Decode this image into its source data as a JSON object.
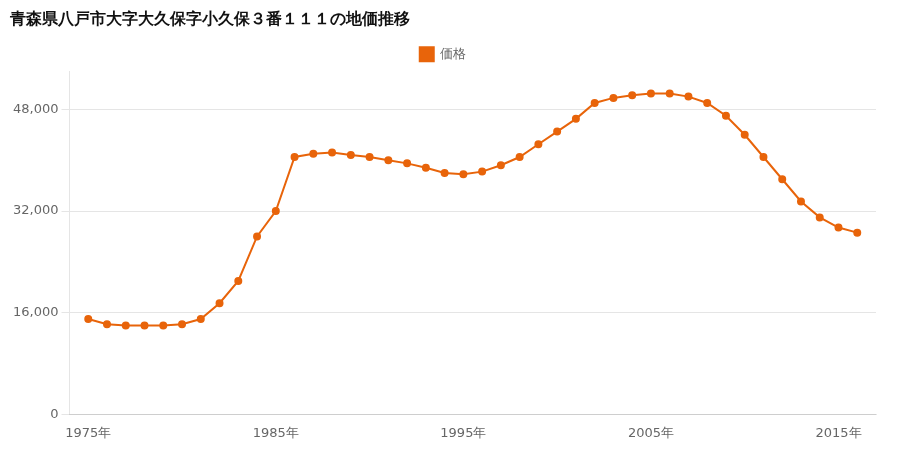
{
  "chart_data": {
    "type": "line",
    "title": "青森県八戸市大字大久保字小久保３番１１１の地価推移",
    "x": [
      1975,
      1976,
      1977,
      1978,
      1979,
      1980,
      1981,
      1982,
      1983,
      1984,
      1985,
      1986,
      1987,
      1988,
      1989,
      1990,
      1991,
      1992,
      1993,
      1994,
      1995,
      1996,
      1997,
      1998,
      1999,
      2000,
      2001,
      2002,
      2003,
      2004,
      2005,
      2006,
      2007,
      2008,
      2009,
      2010,
      2011,
      2012,
      2013,
      2014,
      2015,
      2016
    ],
    "series": [
      {
        "name": "価格",
        "color": "#e8640a",
        "marker": "circle",
        "values": [
          15000,
          14200,
          14000,
          14000,
          14000,
          14200,
          15000,
          17500,
          21000,
          28000,
          32000,
          40500,
          41000,
          41200,
          40800,
          40500,
          40000,
          39500,
          38800,
          38000,
          37800,
          38200,
          39200,
          40500,
          42500,
          44500,
          46500,
          49000,
          49800,
          50200,
          50500,
          50500,
          50000,
          49000,
          47000,
          44000,
          40500,
          37000,
          33500,
          31000,
          29400,
          28600
        ]
      }
    ],
    "xlim": [
      1974,
      2017
    ],
    "xticks": [
      {
        "value": 1975,
        "label": "1975年"
      },
      {
        "value": 1985,
        "label": "1985年"
      },
      {
        "value": 1995,
        "label": "1995年"
      },
      {
        "value": 2005,
        "label": "2005年"
      },
      {
        "value": 2015,
        "label": "2015年"
      }
    ],
    "ylim": [
      0,
      54000
    ],
    "yticks": [
      0,
      {
        "value": 16000,
        "label": "16,000"
      },
      {
        "value": 32000,
        "label": "32,000"
      },
      {
        "value": 48000,
        "label": "48,000"
      }
    ],
    "grid": "y",
    "legend": "top"
  }
}
